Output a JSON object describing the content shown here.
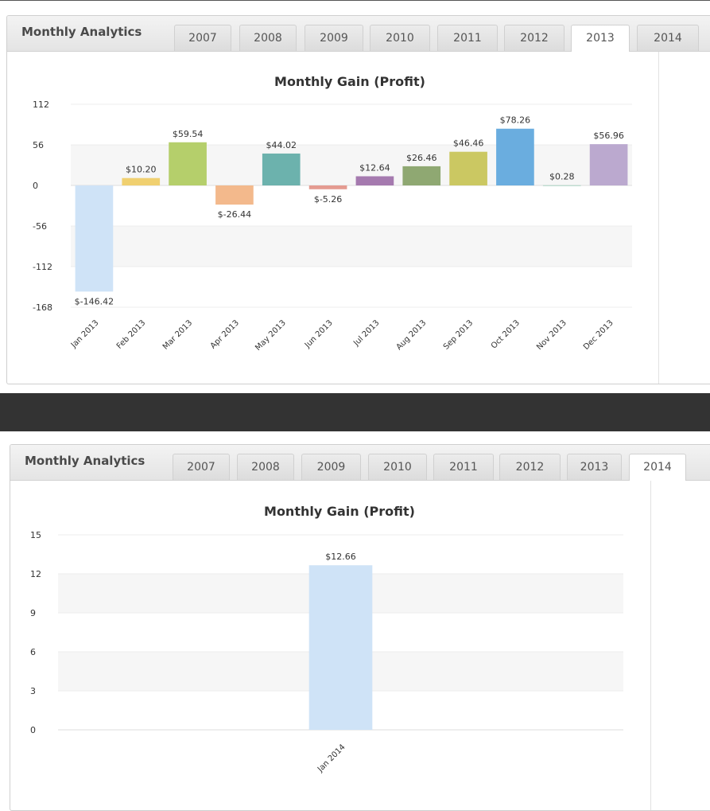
{
  "widgets": [
    {
      "title": "Monthly Analytics",
      "tabs": [
        "2007",
        "2008",
        "2009",
        "2010",
        "2011",
        "2012",
        "2013",
        "2014"
      ],
      "active_tab": "2013"
    },
    {
      "title": "Monthly Analytics",
      "tabs": [
        "2007",
        "2008",
        "2009",
        "2010",
        "2011",
        "2012",
        "2013",
        "2014"
      ],
      "active_tab": "2014"
    }
  ],
  "chart_data": [
    {
      "type": "bar",
      "title": "Monthly Gain (Profit)",
      "categories": [
        "Jan 2013",
        "Feb 2013",
        "Mar 2013",
        "Apr 2013",
        "May 2013",
        "Jun 2013",
        "Jul 2013",
        "Aug 2013",
        "Sep 2013",
        "Oct 2013",
        "Nov 2013",
        "Dec 2013"
      ],
      "values": [
        -146.42,
        10.2,
        59.54,
        -26.44,
        44.02,
        -5.26,
        12.64,
        26.46,
        46.46,
        78.26,
        0.28,
        56.96
      ],
      "labels": [
        "$-146.42",
        "$10.20",
        "$59.54",
        "$-26.44",
        "$44.02",
        "$-5.26",
        "$12.64",
        "$26.46",
        "$46.46",
        "$78.26",
        "$0.28",
        "$56.96"
      ],
      "colors": [
        "#cfe3f7",
        "#f0d070",
        "#b5cf6b",
        "#f3b98c",
        "#6cb2ad",
        "#e49b91",
        "#a57aaf",
        "#8fa872",
        "#cbc862",
        "#6aaddf",
        "#a8d3c0",
        "#bba9cf"
      ],
      "yticks": [
        112,
        56,
        0,
        -56,
        -112,
        -168
      ],
      "ylim": [
        -168,
        112
      ],
      "xlabel": "",
      "ylabel": "",
      "grid": true
    },
    {
      "type": "bar",
      "title": "Monthly Gain (Profit)",
      "categories": [
        "Jan 2014"
      ],
      "values": [
        12.66
      ],
      "labels": [
        "$12.66"
      ],
      "colors": [
        "#cfe3f7"
      ],
      "yticks": [
        15,
        12,
        9,
        6,
        3,
        0
      ],
      "ylim": [
        0,
        15
      ],
      "xlabel": "",
      "ylabel": "",
      "grid": true
    }
  ]
}
